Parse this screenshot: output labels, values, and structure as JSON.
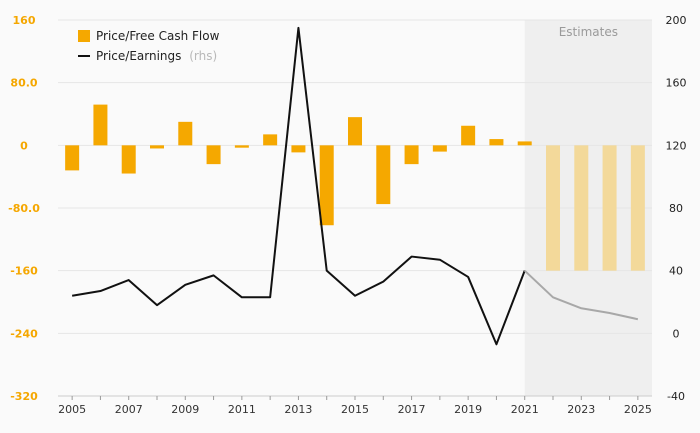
{
  "chart_data": {
    "type": "bar+line",
    "categories": [
      "2005",
      "2006",
      "2007",
      "2008",
      "2009",
      "2010",
      "2011",
      "2012",
      "2013",
      "2014",
      "2015",
      "2016",
      "2017",
      "2018",
      "2019",
      "2020",
      "2021",
      "2022",
      "2023",
      "2024",
      "2025"
    ],
    "x_tick_labels": [
      "2005",
      "2007",
      "2009",
      "2011",
      "2013",
      "2015",
      "2017",
      "2019",
      "2021",
      "2023",
      "2025"
    ],
    "series": [
      {
        "name": "Price/Free Cash Flow",
        "axis": "left",
        "kind": "bar",
        "color": "#f5a800",
        "estimate_color": "#f3d99a",
        "values": [
          -32,
          52,
          -36,
          -4,
          30,
          -24,
          -3,
          14,
          -9,
          -102,
          36,
          -75,
          -24,
          -8,
          25,
          8,
          5,
          -160,
          -160,
          -160,
          -160
        ]
      },
      {
        "name": "Price/Earnings",
        "sub_label": "(rhs)",
        "axis": "right",
        "kind": "line",
        "color": "#111111",
        "estimate_color": "#a8a8a8",
        "values": [
          24,
          27,
          34,
          18,
          31,
          37,
          23,
          23,
          195,
          40,
          24,
          33,
          49,
          47,
          36,
          -7,
          40,
          23,
          16,
          13,
          9
        ]
      }
    ],
    "estimates_from_index": 17,
    "estimates_label": "Estimates",
    "left_axis": {
      "ticks": [
        "160",
        "80.0",
        "0",
        "-80.0",
        "-160",
        "-240",
        "-320"
      ],
      "range": [
        -320,
        160
      ]
    },
    "right_axis": {
      "ticks": [
        "200",
        "160",
        "120",
        "80",
        "40",
        "0",
        "-40"
      ],
      "range": [
        -40,
        200
      ]
    },
    "grid": true,
    "legend_position": "top-left",
    "colors": {
      "accent": "#f5a800",
      "estimate_band": "#eeeeee",
      "left_tick": "#f5a700"
    }
  }
}
